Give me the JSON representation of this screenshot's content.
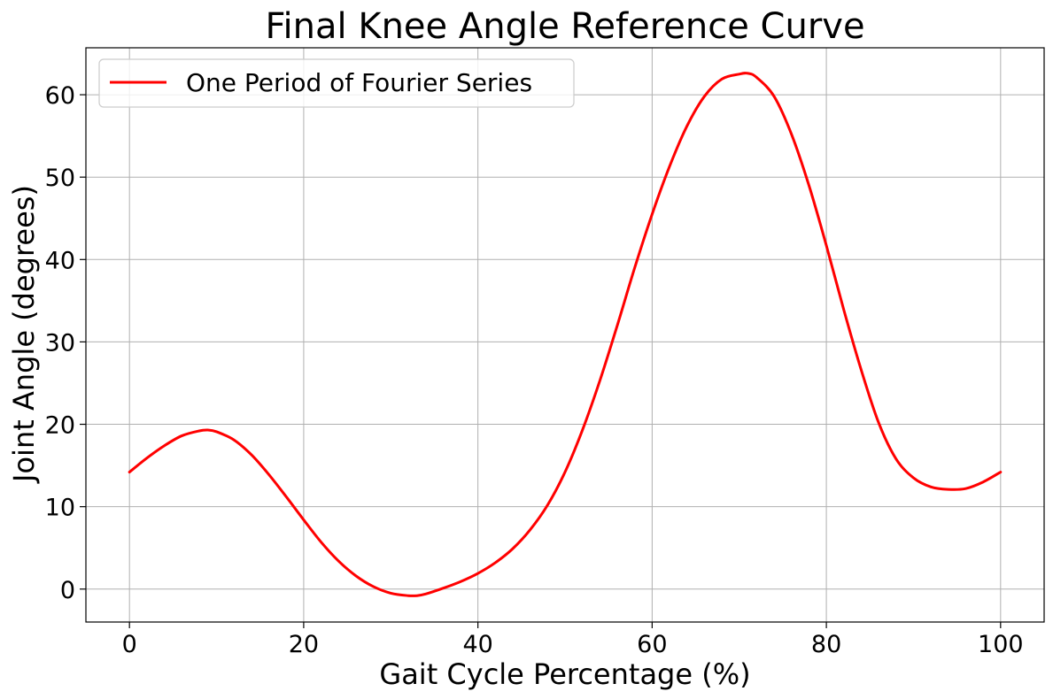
{
  "chart_data": {
    "type": "line",
    "title": "Final Knee Angle Reference Curve",
    "xlabel": "Gait Cycle Percentage (%)",
    "ylabel": "Joint Angle (degrees)",
    "xlim": [
      -5,
      105
    ],
    "ylim": [
      -4,
      65.7
    ],
    "xticks": [
      0,
      20,
      40,
      60,
      80,
      100
    ],
    "yticks": [
      0,
      10,
      20,
      30,
      40,
      50,
      60
    ],
    "grid": true,
    "legend_position": "top-left",
    "series": [
      {
        "name": "One Period of Fourier Series",
        "color": "#ff0000",
        "x": [
          0,
          2,
          4,
          6,
          8,
          9,
          10,
          12,
          14,
          16,
          18,
          20,
          22,
          24,
          26,
          28,
          30,
          32,
          33,
          34,
          36,
          38,
          40,
          42,
          44,
          46,
          48,
          50,
          52,
          54,
          56,
          58,
          60,
          62,
          64,
          66,
          68,
          70,
          71,
          72,
          74,
          76,
          78,
          80,
          82,
          84,
          86,
          88,
          90,
          92,
          94,
          96,
          98,
          100
        ],
        "y": [
          14.2,
          15.9,
          17.4,
          18.6,
          19.2,
          19.3,
          19.1,
          18.1,
          16.3,
          13.9,
          11.2,
          8.4,
          5.7,
          3.4,
          1.6,
          0.3,
          -0.5,
          -0.8,
          -0.8,
          -0.6,
          0.1,
          0.9,
          1.9,
          3.2,
          4.9,
          7.2,
          10.2,
          14.2,
          19.3,
          25.3,
          32.0,
          39.0,
          45.5,
          51.3,
          56.2,
          59.8,
          61.9,
          62.5,
          62.6,
          62.1,
          59.8,
          55.2,
          49.0,
          41.7,
          33.9,
          26.6,
          20.2,
          15.8,
          13.5,
          12.4,
          12.1,
          12.2,
          13.0,
          14.2
        ]
      }
    ]
  }
}
